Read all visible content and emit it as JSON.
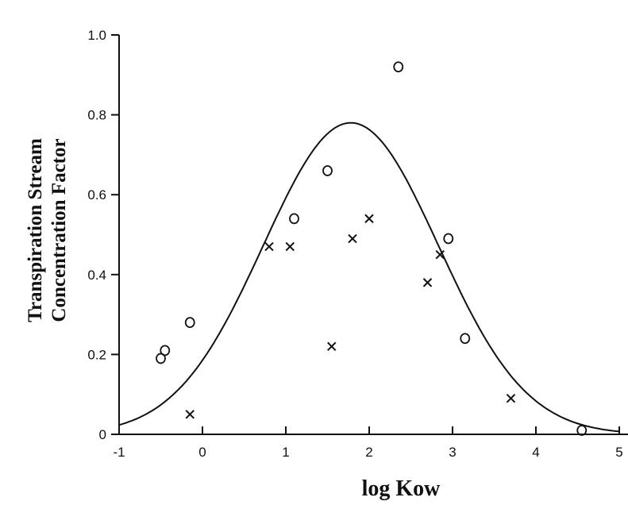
{
  "chart_data": {
    "type": "scatter",
    "title": "",
    "xlabel": "log Kow",
    "ylabel_lines": [
      "Transpiration Stream",
      "Concentration Factor"
    ],
    "xlim": [
      -1,
      5
    ],
    "ylim": [
      0,
      1.0
    ],
    "x_ticks": [
      -1,
      0,
      1,
      2,
      3,
      4,
      5
    ],
    "x_tick_labels": [
      "-1",
      "0",
      "1",
      "2",
      "3",
      "4",
      "5"
    ],
    "y_ticks": [
      0,
      0.2,
      0.4,
      0.6,
      0.8,
      1.0
    ],
    "y_tick_labels": [
      "0",
      "0.2",
      "0.4",
      "0.6",
      "0.8",
      "1.0"
    ],
    "grid": false,
    "legend": "none",
    "series": [
      {
        "marker": "o",
        "points": [
          [
            -0.5,
            0.19
          ],
          [
            -0.45,
            0.21
          ],
          [
            -0.15,
            0.28
          ],
          [
            1.1,
            0.54
          ],
          [
            1.5,
            0.66
          ],
          [
            2.35,
            0.92
          ],
          [
            2.95,
            0.49
          ],
          [
            3.15,
            0.24
          ],
          [
            4.55,
            0.01
          ]
        ]
      },
      {
        "marker": "x",
        "points": [
          [
            -0.15,
            0.05
          ],
          [
            0.8,
            0.47
          ],
          [
            1.05,
            0.47
          ],
          [
            1.55,
            0.22
          ],
          [
            1.8,
            0.49
          ],
          [
            2.0,
            0.54
          ],
          [
            2.7,
            0.38
          ],
          [
            2.85,
            0.45
          ],
          [
            3.7,
            0.09
          ]
        ]
      }
    ],
    "fit_curve": {
      "type": "gaussian",
      "peak_x": 1.78,
      "peak_y": 0.78,
      "sigma": 1.05
    }
  }
}
